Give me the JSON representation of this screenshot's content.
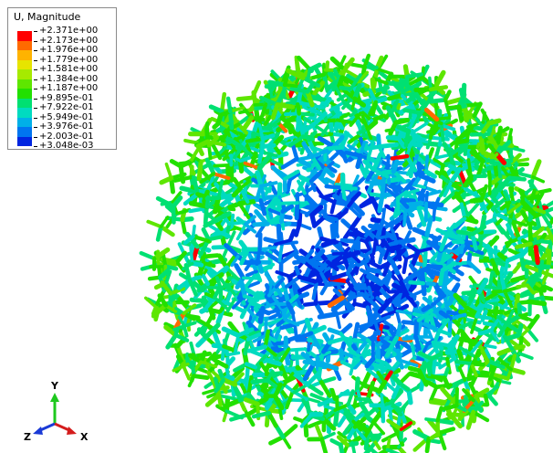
{
  "legend": {
    "title": "U, Magnitude",
    "levels": [
      "+2.371e+00",
      "+2.173e+00",
      "+1.976e+00",
      "+1.779e+00",
      "+1.581e+00",
      "+1.384e+00",
      "+1.187e+00",
      "+9.895e-01",
      "+7.922e-01",
      "+5.949e-01",
      "+3.976e-01",
      "+2.003e-01",
      "+3.048e-03"
    ],
    "colors": [
      "#ff0000",
      "#ff6a00",
      "#ffb300",
      "#e7e400",
      "#a6ea00",
      "#5ee600",
      "#22e000",
      "#00e072",
      "#00dbc0",
      "#00b0e8",
      "#0075f0",
      "#0025e0"
    ]
  },
  "triad": {
    "y_label": "Y",
    "z_label": "Z",
    "x_label": "X",
    "y_color": "#1ec81e",
    "z_color": "#1a3ad6",
    "x_color": "#d41c1c"
  }
}
